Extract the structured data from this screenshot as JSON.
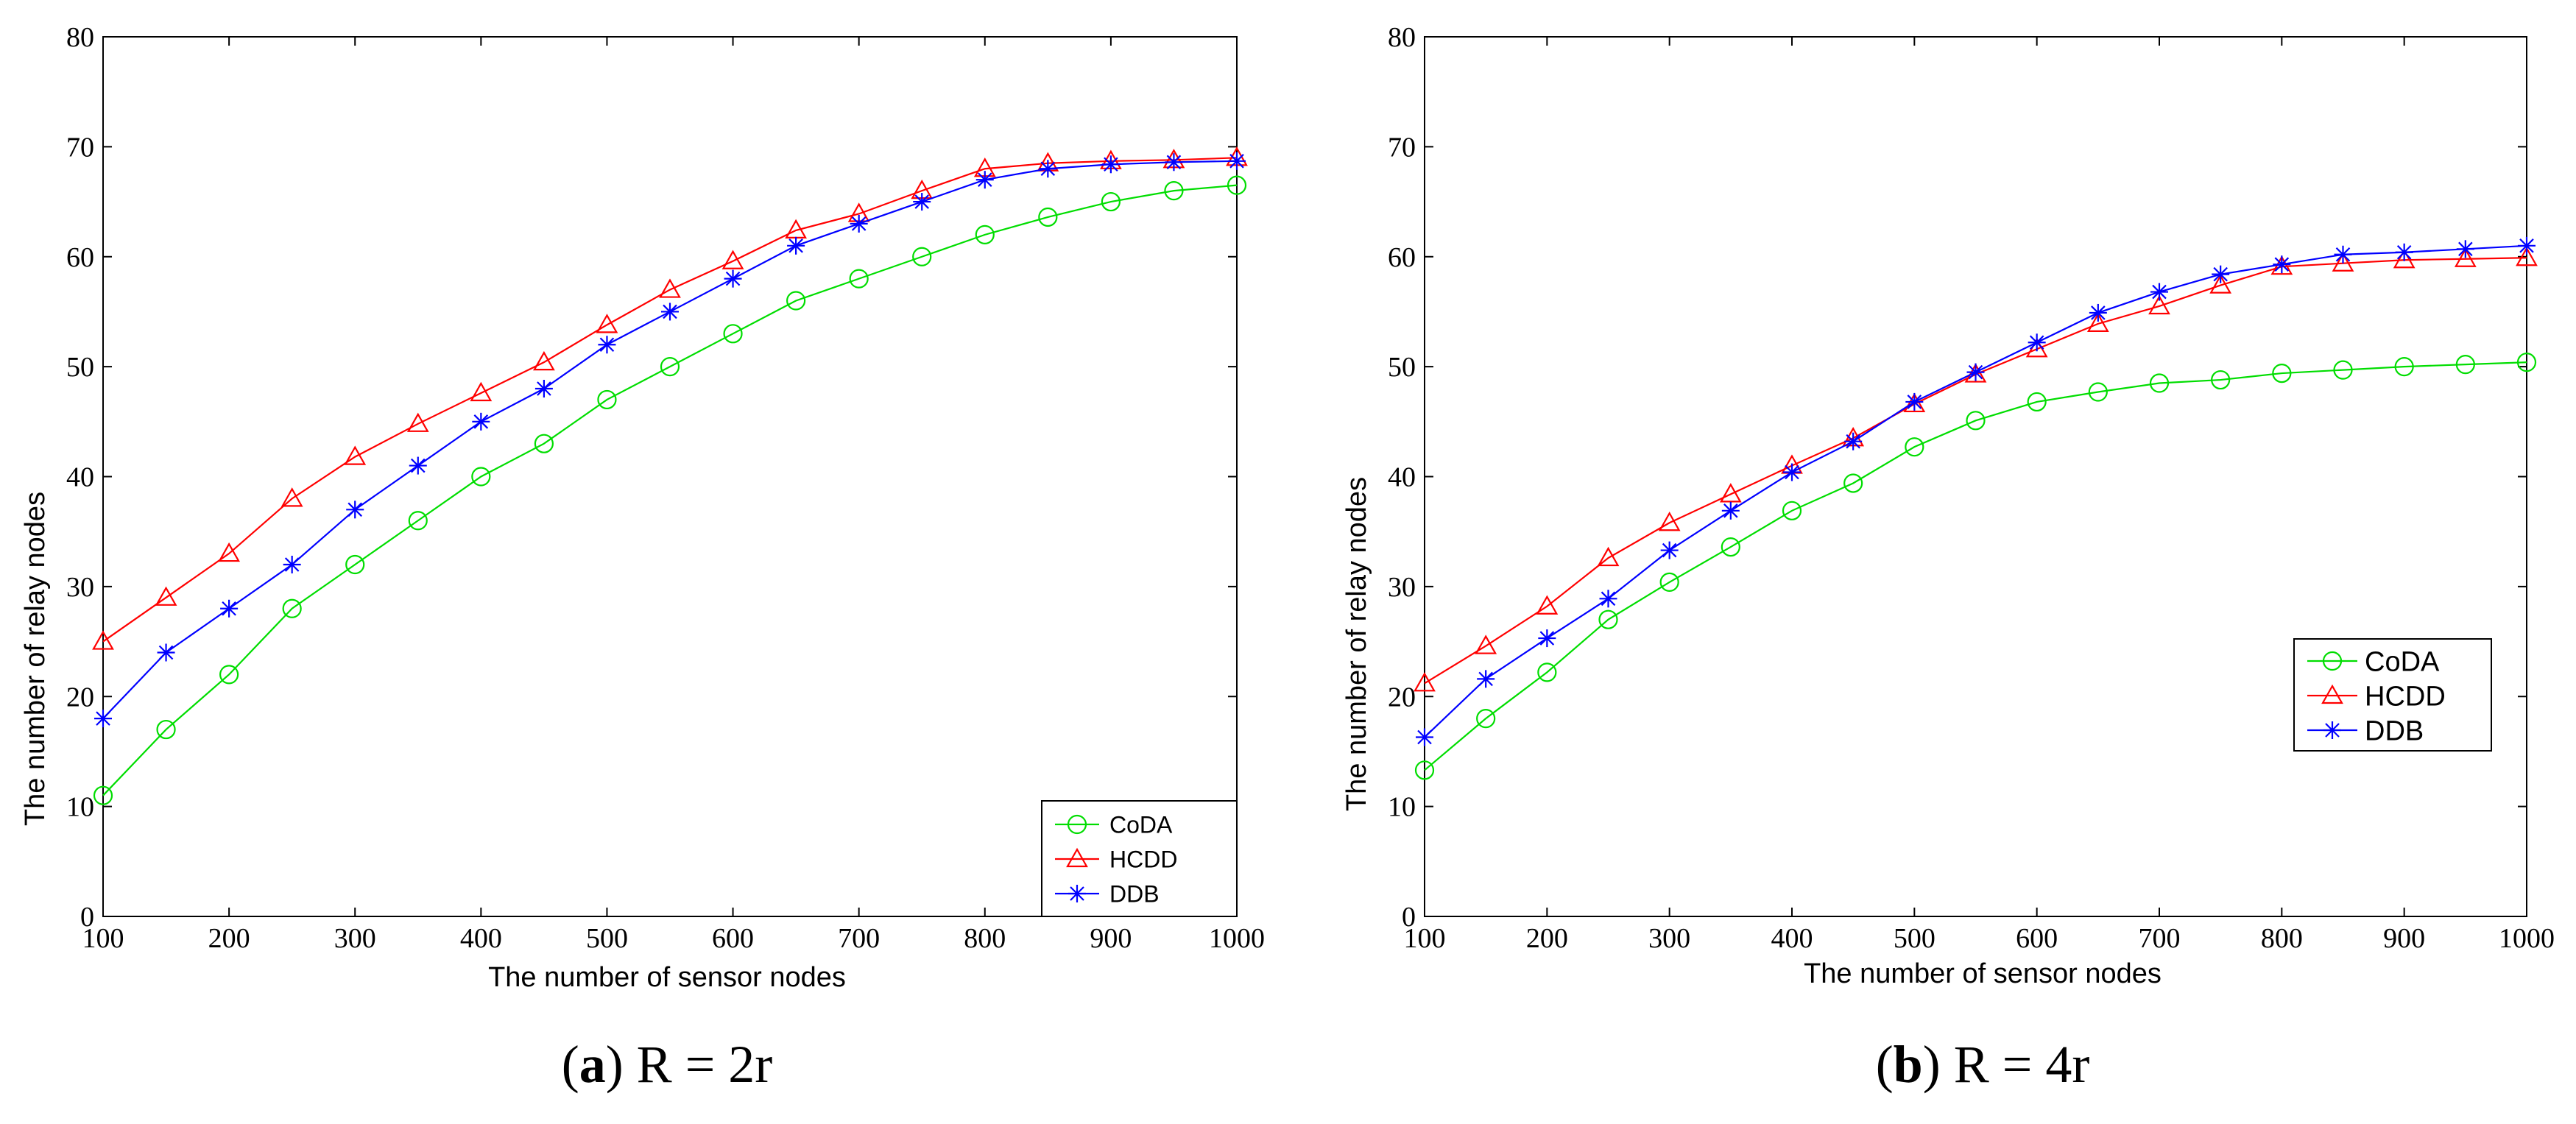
{
  "chart_data": [
    {
      "type": "line",
      "panel": "a",
      "caption_letter": "a",
      "caption_text": "R = 2r",
      "xlabel": "The number of sensor nodes",
      "ylabel": "The number of relay nodes",
      "xlim": [
        100,
        1000
      ],
      "ylim": [
        0,
        80
      ],
      "xticks": [
        100,
        200,
        300,
        400,
        500,
        600,
        700,
        800,
        900,
        1000
      ],
      "yticks": [
        0,
        10,
        20,
        30,
        40,
        50,
        60,
        70,
        80
      ],
      "legend_position": "bottom-right",
      "x": [
        100,
        150,
        200,
        250,
        300,
        350,
        400,
        450,
        500,
        550,
        600,
        650,
        700,
        750,
        800,
        850,
        900,
        950,
        1000
      ],
      "series": [
        {
          "name": "CoDA",
          "color": "#00dd00",
          "marker": "circle",
          "values": [
            11,
            17,
            22,
            28,
            32,
            36,
            40,
            43,
            47,
            50,
            53,
            56,
            58,
            60,
            62,
            63.6,
            65,
            66,
            66.5
          ]
        },
        {
          "name": "HCDD",
          "color": "#ff0000",
          "marker": "triangle",
          "values": [
            25,
            29,
            33,
            38,
            41.8,
            44.8,
            47.6,
            50.4,
            53.8,
            57,
            59.6,
            62.4,
            63.9,
            66,
            68,
            68.5,
            68.7,
            68.8,
            69
          ]
        },
        {
          "name": "DDB",
          "color": "#0000ff",
          "marker": "star",
          "values": [
            18,
            24,
            28,
            32,
            37,
            41,
            45,
            48,
            52,
            55,
            58,
            61,
            63,
            65,
            67,
            68,
            68.4,
            68.6,
            68.7
          ]
        }
      ]
    },
    {
      "type": "line",
      "panel": "b",
      "caption_letter": "b",
      "caption_text": "R = 4r",
      "xlabel": "The number of sensor nodes",
      "ylabel": "The number of relay nodes",
      "xlim": [
        100,
        1000
      ],
      "ylim": [
        0,
        80
      ],
      "xticks": [
        100,
        200,
        300,
        400,
        500,
        600,
        700,
        800,
        900,
        1000
      ],
      "yticks": [
        0,
        10,
        20,
        30,
        40,
        50,
        60,
        70,
        80
      ],
      "legend_position": "middle-right",
      "x": [
        100,
        150,
        200,
        250,
        300,
        350,
        400,
        450,
        500,
        550,
        600,
        650,
        700,
        750,
        800,
        850,
        900,
        950,
        1000
      ],
      "series": [
        {
          "name": "CoDA",
          "color": "#00dd00",
          "marker": "circle",
          "values": [
            13.3,
            18,
            22.2,
            27,
            30.4,
            33.6,
            36.9,
            39.4,
            42.7,
            45.1,
            46.8,
            47.7,
            48.5,
            48.8,
            49.4,
            49.7,
            50,
            50.2,
            50.4
          ]
        },
        {
          "name": "HCDD",
          "color": "#ff0000",
          "marker": "triangle",
          "values": [
            21.2,
            24.6,
            28.2,
            32.6,
            35.8,
            38.4,
            41,
            43.5,
            46.6,
            49.3,
            51.6,
            53.9,
            55.5,
            57.4,
            59.1,
            59.4,
            59.7,
            59.8,
            59.9
          ]
        },
        {
          "name": "DDB",
          "color": "#0000ff",
          "marker": "star",
          "values": [
            16.3,
            21.6,
            25.3,
            28.9,
            33.3,
            36.9,
            40.4,
            43.2,
            46.8,
            49.5,
            52.2,
            54.9,
            56.8,
            58.4,
            59.3,
            60.2,
            60.4,
            60.7,
            61
          ]
        }
      ]
    }
  ]
}
